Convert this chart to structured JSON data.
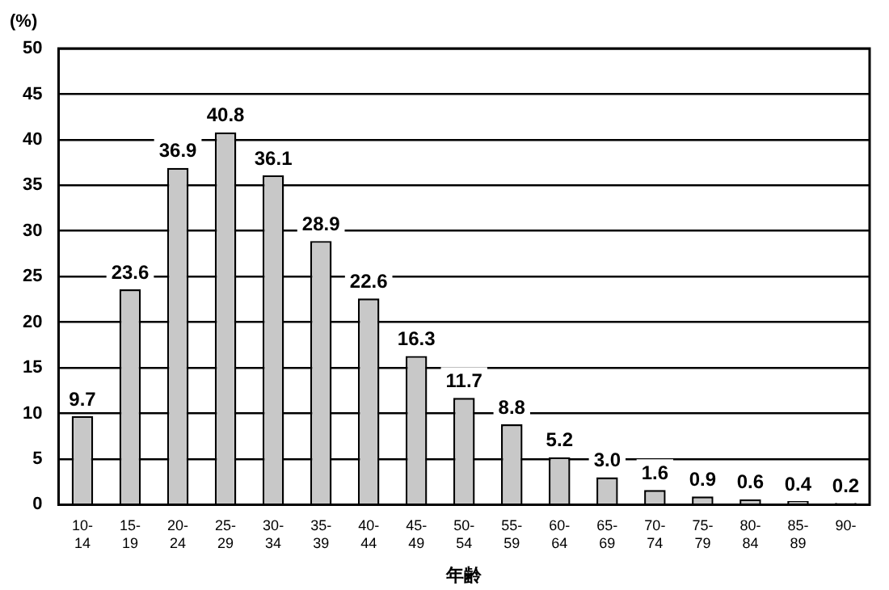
{
  "chart_data": {
    "type": "bar",
    "ylabel": "(%)",
    "xlabel": "年齢",
    "categories": [
      "10-14",
      "15-19",
      "20-24",
      "25-29",
      "30-34",
      "35-39",
      "40-44",
      "45-49",
      "50-54",
      "55-59",
      "60-64",
      "65-69",
      "70-74",
      "75-79",
      "80-84",
      "85-89",
      "90-"
    ],
    "values": [
      9.7,
      23.6,
      36.9,
      40.8,
      36.1,
      28.9,
      22.6,
      16.3,
      11.7,
      8.8,
      5.2,
      3.0,
      1.6,
      0.9,
      0.6,
      0.4,
      0.2
    ],
    "value_labels": [
      "9.7",
      "23.6",
      "36.9",
      "40.8",
      "36.1",
      "28.9",
      "22.6",
      "16.3",
      "11.7",
      "8.8",
      "5.2",
      "3.0",
      "1.6",
      "0.9",
      "0.6",
      "0.4",
      "0.2"
    ],
    "color": "#c8c8c8",
    "ylim": [
      0,
      50
    ],
    "yticks": [
      0,
      5,
      10,
      15,
      20,
      25,
      30,
      35,
      40,
      45,
      50
    ],
    "grid": "y",
    "legend": false
  }
}
